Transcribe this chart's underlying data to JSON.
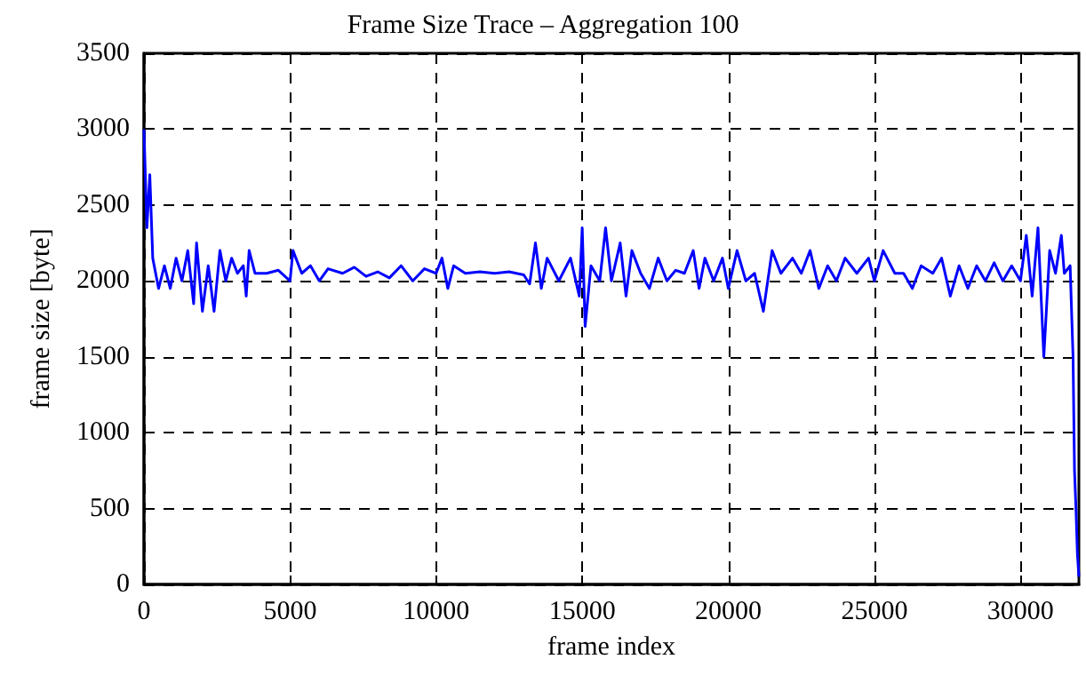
{
  "chart_data": {
    "type": "line",
    "title": "Frame Size Trace – Aggregation 100",
    "xlabel": "frame index",
    "ylabel": "frame size [byte]",
    "xlim": [
      0,
      32000
    ],
    "xticks": [
      0,
      5000,
      10000,
      15000,
      20000,
      25000,
      30000
    ],
    "ylim": [
      0,
      3500
    ],
    "yticks": [
      0,
      500,
      1000,
      1500,
      2000,
      2500,
      3000,
      3500
    ],
    "grid": true,
    "marker": "none",
    "line_style": "solid",
    "x": [
      0,
      100,
      200,
      300,
      400,
      500,
      700,
      900,
      1100,
      1300,
      1500,
      1700,
      1800,
      2000,
      2200,
      2400,
      2600,
      2800,
      3000,
      3200,
      3400,
      3500,
      3600,
      3800,
      4200,
      4600,
      5000,
      5100,
      5400,
      5700,
      6000,
      6300,
      6800,
      7200,
      7600,
      8000,
      8400,
      8800,
      9200,
      9600,
      10000,
      10200,
      10400,
      10600,
      11000,
      11500,
      12000,
      12500,
      13000,
      13200,
      13400,
      13600,
      13800,
      14200,
      14600,
      14900,
      15000,
      15100,
      15300,
      15600,
      15800,
      16000,
      16300,
      16500,
      16700,
      17000,
      17300,
      17600,
      17900,
      18200,
      18500,
      18800,
      19000,
      19200,
      19500,
      19800,
      20000,
      20300,
      20600,
      20900,
      21200,
      21500,
      21800,
      22200,
      22500,
      22800,
      23100,
      23400,
      23700,
      24000,
      24400,
      24800,
      25000,
      25300,
      25700,
      26000,
      26300,
      26600,
      27000,
      27300,
      27600,
      27900,
      28200,
      28500,
      28800,
      29100,
      29400,
      29700,
      30000,
      30200,
      30400,
      30600,
      30800,
      31000,
      31200,
      31400,
      31500,
      31700,
      31800,
      31850,
      31900,
      31950,
      32000
    ],
    "series": [
      {
        "color": "#0000ff",
        "values": [
          3000,
          2350,
          2700,
          2150,
          2050,
          1950,
          2100,
          1950,
          2150,
          2000,
          2200,
          1850,
          2250,
          1800,
          2100,
          1800,
          2200,
          2000,
          2150,
          2050,
          2100,
          1900,
          2200,
          2050,
          2050,
          2070,
          2000,
          2200,
          2050,
          2100,
          2000,
          2080,
          2050,
          2090,
          2030,
          2060,
          2020,
          2100,
          2000,
          2080,
          2050,
          2150,
          1950,
          2100,
          2050,
          2060,
          2050,
          2060,
          2040,
          1980,
          2250,
          1950,
          2150,
          2000,
          2150,
          1900,
          2350,
          1700,
          2100,
          2000,
          2350,
          2000,
          2250,
          1900,
          2200,
          2050,
          1950,
          2150,
          2000,
          2070,
          2050,
          2200,
          1950,
          2150,
          2000,
          2150,
          1950,
          2200,
          2000,
          2050,
          1800,
          2200,
          2050,
          2150,
          2050,
          2200,
          1950,
          2100,
          2000,
          2150,
          2050,
          2150,
          2000,
          2200,
          2050,
          2050,
          1950,
          2100,
          2050,
          2150,
          1900,
          2100,
          1950,
          2100,
          2000,
          2120,
          2000,
          2100,
          2000,
          2300,
          1900,
          2350,
          1500,
          2200,
          2050,
          2300,
          2050,
          2100,
          1500,
          750,
          500,
          200,
          50
        ]
      }
    ]
  }
}
